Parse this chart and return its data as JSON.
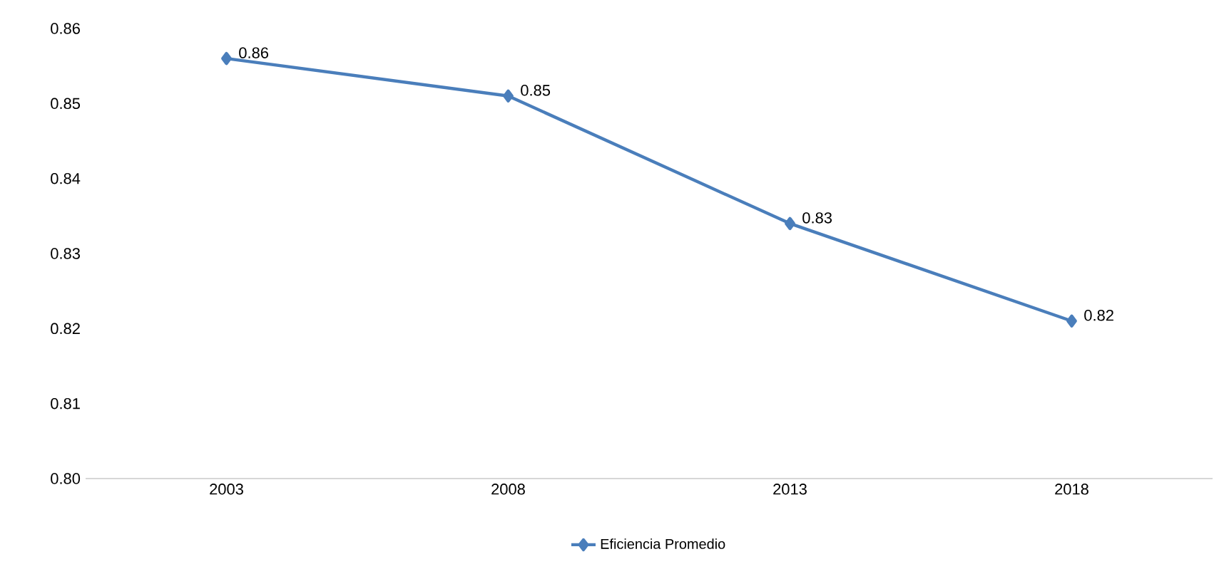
{
  "chart_data": {
    "type": "line",
    "categories": [
      "2003",
      "2008",
      "2013",
      "2018"
    ],
    "series": [
      {
        "name": "Eficiencia Promedio",
        "color": "#4a7ebb",
        "values": [
          0.856,
          0.851,
          0.834,
          0.821
        ],
        "value_labels": [
          "0.86",
          "0.85",
          "0.83",
          "0.82"
        ]
      }
    ],
    "ylim": [
      0.8,
      0.86
    ],
    "yticks": [
      {
        "value": 0.8,
        "label": "0.80"
      },
      {
        "value": 0.81,
        "label": "0.81"
      },
      {
        "value": 0.82,
        "label": "0.82"
      },
      {
        "value": 0.83,
        "label": "0.83"
      },
      {
        "value": 0.84,
        "label": "0.84"
      },
      {
        "value": 0.85,
        "label": "0.85"
      },
      {
        "value": 0.86,
        "label": "0.86"
      }
    ],
    "grid": false,
    "legend": "bottom",
    "marker": "diamond",
    "line_style": "solid"
  }
}
